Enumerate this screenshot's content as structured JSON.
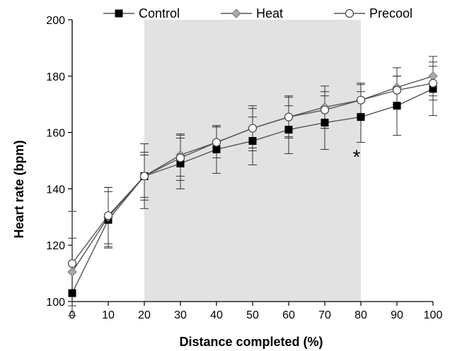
{
  "chart_data": {
    "type": "line",
    "xlabel": "Distance completed (%)",
    "ylabel": "Heart rate (bpm)",
    "x": [
      0,
      10,
      20,
      30,
      40,
      50,
      60,
      70,
      80,
      90,
      100
    ],
    "xlim": [
      0,
      100
    ],
    "ylim": [
      100,
      200
    ],
    "xticks": [
      "0",
      "10",
      "20",
      "30",
      "40",
      "50",
      "60",
      "70",
      "80",
      "90",
      "100"
    ],
    "yticks": [
      "100",
      "120",
      "140",
      "160",
      "180",
      "200"
    ],
    "grid": false,
    "legend_position": "top",
    "shaded_region": {
      "x_start": 20,
      "x_end": 80,
      "color": "#e2e2e2"
    },
    "series": [
      {
        "name": "Control",
        "marker": "square",
        "color": "#000000",
        "line_color": "#555555",
        "values": [
          103,
          129,
          144.5,
          149,
          154,
          157,
          161,
          163.5,
          165.5,
          169.5,
          175.5
        ],
        "error": [
          0,
          10,
          11.5,
          9,
          8.5,
          8.5,
          8.5,
          9.5,
          9,
          10.5,
          9.5
        ]
      },
      {
        "name": "Heat",
        "marker": "diamond",
        "color": "#a8a8a8",
        "line_color": "#555555",
        "values": [
          110.5,
          130,
          144.5,
          152,
          156.5,
          161.5,
          165.5,
          169,
          171.5,
          176,
          180
        ],
        "error": [
          12,
          10.5,
          8.5,
          7.5,
          5.5,
          8,
          7.5,
          7.5,
          6,
          7,
          7
        ]
      },
      {
        "name": "Precool",
        "marker": "circle",
        "color": "#ffffff",
        "line_color": "#555555",
        "values": [
          113.5,
          130.5,
          144.5,
          151,
          156.5,
          161.5,
          165.5,
          168,
          171.5,
          175,
          177.5
        ],
        "error": [
          18.5,
          10,
          7.5,
          8,
          5.5,
          7,
          7,
          6.5,
          5.5,
          5,
          6
        ]
      }
    ],
    "annotations": [
      {
        "text": "*",
        "x": 80,
        "y": 152.5
      }
    ]
  }
}
